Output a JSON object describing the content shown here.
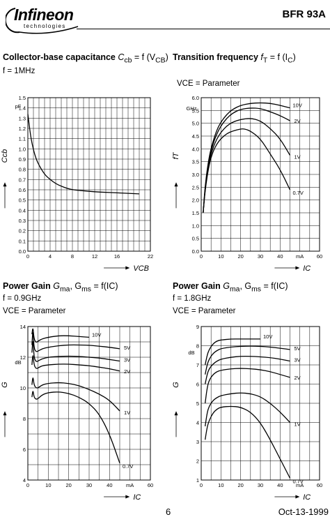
{
  "header": {
    "logo_text": "Infineon",
    "logo_subtext": "technologies",
    "part_number": "BFR 93A"
  },
  "panels": [
    {
      "title_prefix": "Collector-base capacitance ",
      "title_math": "C",
      "title_sub": "cb",
      "title_rest": " = f (V",
      "title_sub2": "CB",
      "title_end": ")",
      "param1": "f = 1MHz",
      "param2": ""
    },
    {
      "title_prefix": "Transition frequency ",
      "title_math": "f",
      "title_sub": "T",
      "title_rest": " = f (I",
      "title_sub2": "C",
      "title_end": ")",
      "param1": "",
      "param2": "VCE = Parameter"
    },
    {
      "title_prefix": "Power Gain ",
      "title_math": "G",
      "title_sub": "ma",
      "title_rest": ", G",
      "title_sub2": "ms",
      "title_end": " = f(IC)",
      "param1": "f = 0.9GHz",
      "param2": "VCE = Parameter"
    },
    {
      "title_prefix": "Power Gain ",
      "title_math": "G",
      "title_sub": "ma",
      "title_rest": ", G",
      "title_sub2": "ms",
      "title_end": " = f(IC)",
      "param1": "f = 1.8GHz",
      "param2": "VCE = Parameter"
    }
  ],
  "chart_data": [
    {
      "type": "line",
      "xlabel": "VCB",
      "ylabel": "Ccb",
      "yunit": "pF",
      "xlim": [
        0,
        22
      ],
      "ylim": [
        0,
        1.5
      ],
      "xticks": [
        0,
        4,
        8,
        12,
        16,
        22
      ],
      "xticklabels": [
        "0",
        "4",
        "8",
        "12",
        "16",
        "22"
      ],
      "xtick_unit_label": "V",
      "yticks": [
        0.0,
        0.1,
        0.2,
        0.3,
        0.4,
        0.5,
        0.6,
        0.7,
        0.8,
        0.9,
        1.0,
        1.1,
        1.2,
        1.3,
        1.4,
        1.5
      ],
      "yticklabels": [
        "0.0",
        "0.1",
        "0.2",
        "0.3",
        "0.4",
        "0.5",
        "0.6",
        "0.7",
        "0.8",
        "0.9",
        "1.0",
        "1.1",
        "1.2",
        "1.3",
        "1.4",
        "1.5"
      ],
      "grid": true,
      "series": [
        {
          "name": "",
          "x": [
            0,
            0.5,
            1,
            1.5,
            2,
            3,
            4,
            5,
            6,
            7,
            8,
            10,
            12,
            14,
            16,
            18,
            20
          ],
          "y": [
            1.34,
            1.12,
            0.99,
            0.9,
            0.84,
            0.75,
            0.7,
            0.66,
            0.635,
            0.615,
            0.6,
            0.59,
            0.58,
            0.575,
            0.57,
            0.565,
            0.56
          ]
        }
      ]
    },
    {
      "type": "line",
      "xlabel": "IC",
      "ylabel": "fT",
      "yunit": "GHz",
      "xlim": [
        0,
        60
      ],
      "ylim": [
        0,
        6
      ],
      "xticks": [
        0,
        10,
        20,
        30,
        40,
        50,
        60
      ],
      "xticklabels": [
        "0",
        "10",
        "20",
        "30",
        "40",
        "mA",
        "60"
      ],
      "yticks": [
        0.0,
        0.5,
        1.0,
        1.5,
        2.0,
        2.5,
        3.0,
        3.5,
        4.0,
        4.5,
        5.0,
        5.5,
        6.0
      ],
      "yticklabels": [
        "0.0",
        "0.5",
        "1.0",
        "1.5",
        "2.0",
        "2.5",
        "3.0",
        "3.5",
        "4.0",
        "4.5",
        "5.0",
        "5.5",
        "6.0"
      ],
      "grid": true,
      "series": [
        {
          "name": "10V",
          "x": [
            1,
            2,
            4,
            6,
            8,
            10,
            13,
            16,
            20,
            25,
            30,
            35,
            40,
            45
          ],
          "y": [
            1.5,
            2.6,
            3.7,
            4.3,
            4.75,
            5.05,
            5.35,
            5.55,
            5.7,
            5.78,
            5.8,
            5.78,
            5.7,
            5.6
          ]
        },
        {
          "name": "2V",
          "x": [
            1,
            2,
            4,
            6,
            8,
            10,
            13,
            16,
            20,
            25,
            30,
            35,
            40,
            45
          ],
          "y": [
            1.5,
            2.5,
            3.6,
            4.2,
            4.6,
            4.9,
            5.2,
            5.4,
            5.55,
            5.6,
            5.58,
            5.45,
            5.3,
            5.1
          ]
        },
        {
          "name": "1V",
          "x": [
            1,
            2,
            4,
            6,
            8,
            10,
            13,
            16,
            20,
            25,
            30,
            35,
            40,
            45
          ],
          "y": [
            1.5,
            2.45,
            3.5,
            4.05,
            4.4,
            4.65,
            4.9,
            5.05,
            5.15,
            5.2,
            5.1,
            4.8,
            4.4,
            3.75
          ]
        },
        {
          "name": "0.7V",
          "x": [
            1,
            2,
            4,
            6,
            8,
            10,
            13,
            16,
            20,
            22,
            25,
            30,
            35,
            40,
            45
          ],
          "y": [
            1.5,
            2.4,
            3.4,
            3.9,
            4.2,
            4.4,
            4.6,
            4.7,
            4.78,
            4.78,
            4.7,
            4.4,
            3.8,
            3.2,
            2.4
          ]
        }
      ]
    },
    {
      "type": "line",
      "xlabel": "IC",
      "ylabel": "G",
      "yunit": "dB",
      "xlim": [
        0,
        60
      ],
      "ylim": [
        4,
        14
      ],
      "xticks": [
        0,
        10,
        20,
        30,
        40,
        50,
        60
      ],
      "xticklabels": [
        "0",
        "10",
        "20",
        "30",
        "40",
        "mA",
        "60"
      ],
      "yticks": [
        4,
        6,
        8,
        10,
        12,
        14
      ],
      "yticklabels": [
        "4",
        "6",
        "8",
        "10",
        "12",
        "14"
      ],
      "grid": true,
      "series": [
        {
          "name": "10V",
          "x": [
            2,
            2.5,
            3,
            4,
            5,
            7,
            10,
            15,
            20,
            25,
            30
          ],
          "y": [
            13.5,
            14.0,
            13.2,
            12.95,
            13.05,
            13.2,
            13.3,
            13.4,
            13.4,
            13.35,
            13.3
          ]
        },
        {
          "name": "5V",
          "x": [
            2,
            2.5,
            3,
            4,
            5,
            7,
            10,
            15,
            20,
            25,
            30,
            35,
            40,
            45
          ],
          "y": [
            12.8,
            13.9,
            12.6,
            12.35,
            12.4,
            12.55,
            12.65,
            12.75,
            12.8,
            12.8,
            12.78,
            12.72,
            12.65,
            12.55
          ]
        },
        {
          "name": "3V",
          "x": [
            2,
            2.5,
            3,
            4,
            5,
            7,
            10,
            15,
            20,
            25,
            30,
            35,
            40,
            45
          ],
          "y": [
            12.3,
            13.3,
            12.0,
            11.7,
            11.75,
            11.9,
            12.0,
            12.05,
            12.07,
            12.05,
            12.0,
            11.95,
            11.85,
            11.75
          ]
        },
        {
          "name": "2V",
          "x": [
            2,
            2.5,
            3,
            4,
            5,
            7,
            10,
            15,
            20,
            25,
            30,
            35,
            40,
            45
          ],
          "y": [
            11.5,
            12.3,
            11.5,
            11.25,
            11.3,
            11.45,
            11.5,
            11.55,
            11.55,
            11.5,
            11.45,
            11.35,
            11.25,
            11.1
          ]
        },
        {
          "name": "1V",
          "x": [
            2,
            2.5,
            3,
            4,
            5,
            7,
            10,
            15,
            20,
            25,
            30,
            35,
            40,
            45
          ],
          "y": [
            10.2,
            10.8,
            10.2,
            10.0,
            10.0,
            10.2,
            10.3,
            10.35,
            10.3,
            10.15,
            9.9,
            9.6,
            9.2,
            8.5
          ]
        },
        {
          "name": "0.7V",
          "x": [
            2,
            2.5,
            3,
            4,
            5,
            7,
            10,
            15,
            20,
            25,
            30,
            35,
            40,
            45
          ],
          "y": [
            9.4,
            9.9,
            9.4,
            9.25,
            9.3,
            9.55,
            9.7,
            9.75,
            9.65,
            9.4,
            9.0,
            8.3,
            7.0,
            5.1
          ]
        }
      ]
    },
    {
      "type": "line",
      "xlabel": "IC",
      "ylabel": "G",
      "yunit": "dB",
      "xlim": [
        0,
        60
      ],
      "ylim": [
        1,
        9
      ],
      "xticks": [
        0,
        10,
        20,
        30,
        40,
        50,
        60
      ],
      "xticklabels": [
        "0",
        "10",
        "20",
        "30",
        "40",
        "mA",
        "60"
      ],
      "yticks": [
        1,
        2,
        3,
        4,
        5,
        6,
        7,
        8,
        9
      ],
      "yticklabels": [
        "1",
        "2",
        "3",
        "4",
        "5",
        "6",
        "7",
        "8",
        "9"
      ],
      "grid": true,
      "series": [
        {
          "name": "10V",
          "x": [
            2,
            3,
            4,
            6,
            8,
            10,
            15,
            20,
            25,
            30
          ],
          "y": [
            7.0,
            7.5,
            7.8,
            8.1,
            8.25,
            8.3,
            8.35,
            8.35,
            8.35,
            8.35
          ]
        },
        {
          "name": "5V",
          "x": [
            2,
            3,
            4,
            6,
            8,
            10,
            15,
            20,
            25,
            30,
            35,
            40,
            45
          ],
          "y": [
            6.5,
            7.0,
            7.3,
            7.6,
            7.75,
            7.85,
            7.93,
            7.97,
            7.98,
            7.97,
            7.93,
            7.87,
            7.8
          ]
        },
        {
          "name": "3V",
          "x": [
            2,
            3,
            4,
            6,
            8,
            10,
            15,
            20,
            25,
            30,
            35,
            40,
            45
          ],
          "y": [
            6.0,
            6.5,
            6.8,
            7.05,
            7.2,
            7.3,
            7.4,
            7.45,
            7.45,
            7.42,
            7.38,
            7.3,
            7.2
          ]
        },
        {
          "name": "2V",
          "x": [
            2,
            3,
            4,
            6,
            8,
            10,
            15,
            20,
            25,
            30,
            35,
            40,
            45
          ],
          "y": [
            5.0,
            5.8,
            6.2,
            6.5,
            6.65,
            6.72,
            6.8,
            6.82,
            6.8,
            6.75,
            6.65,
            6.5,
            6.35
          ]
        },
        {
          "name": "1V",
          "x": [
            2,
            3,
            4,
            6,
            8,
            10,
            15,
            20,
            25,
            30,
            35,
            40,
            45
          ],
          "y": [
            3.8,
            4.5,
            4.85,
            5.15,
            5.3,
            5.4,
            5.5,
            5.55,
            5.5,
            5.35,
            5.0,
            4.55,
            4.0
          ]
        },
        {
          "name": "0.7V",
          "x": [
            2,
            3,
            4,
            6,
            8,
            10,
            15,
            20,
            25,
            30,
            35,
            40,
            45
          ],
          "y": [
            3.1,
            3.75,
            4.1,
            4.5,
            4.7,
            4.8,
            4.85,
            4.8,
            4.55,
            4.0,
            3.1,
            2.1,
            1.1
          ]
        }
      ]
    }
  ],
  "footer": {
    "page": "6",
    "date": "Oct-13-1999"
  }
}
